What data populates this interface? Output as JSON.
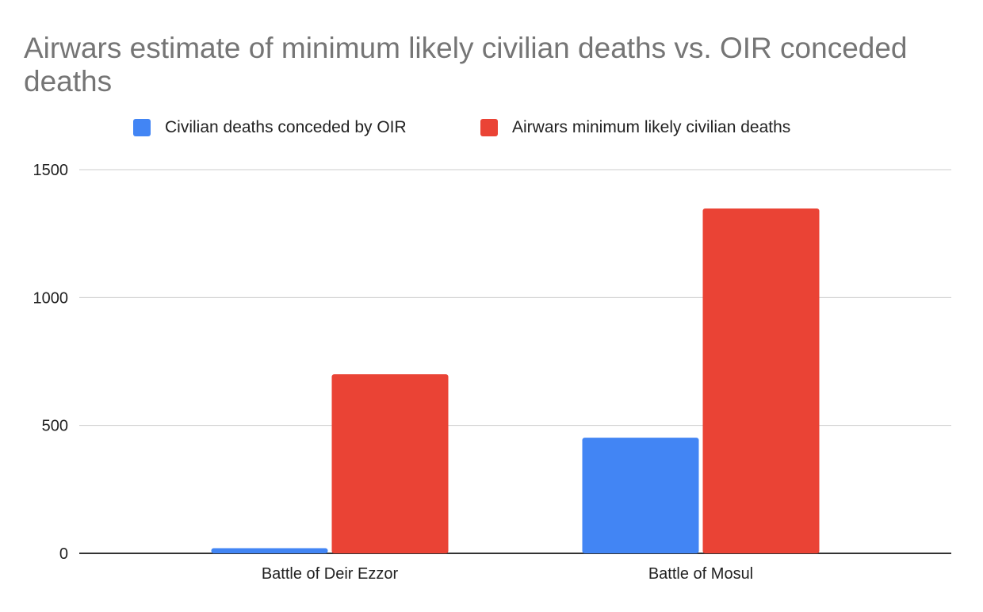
{
  "chart_data": {
    "type": "bar",
    "title": "Airwars estimate of minimum likely civilian deaths vs. OIR conceded deaths",
    "categories": [
      "Battle of Deir Ezzor",
      "Battle of Mosul"
    ],
    "series": [
      {
        "name": "Civilian deaths conceded by OIR",
        "color": "#4285f4",
        "values": [
          20,
          452
        ]
      },
      {
        "name": "Airwars minimum likely civilian deaths",
        "color": "#ea4335",
        "values": [
          700,
          1348
        ]
      }
    ],
    "yticks": [
      0,
      500,
      1000,
      1500
    ],
    "ylim": [
      0,
      1500
    ],
    "grid": true,
    "legend": "top",
    "xlabel": "",
    "ylabel": ""
  }
}
